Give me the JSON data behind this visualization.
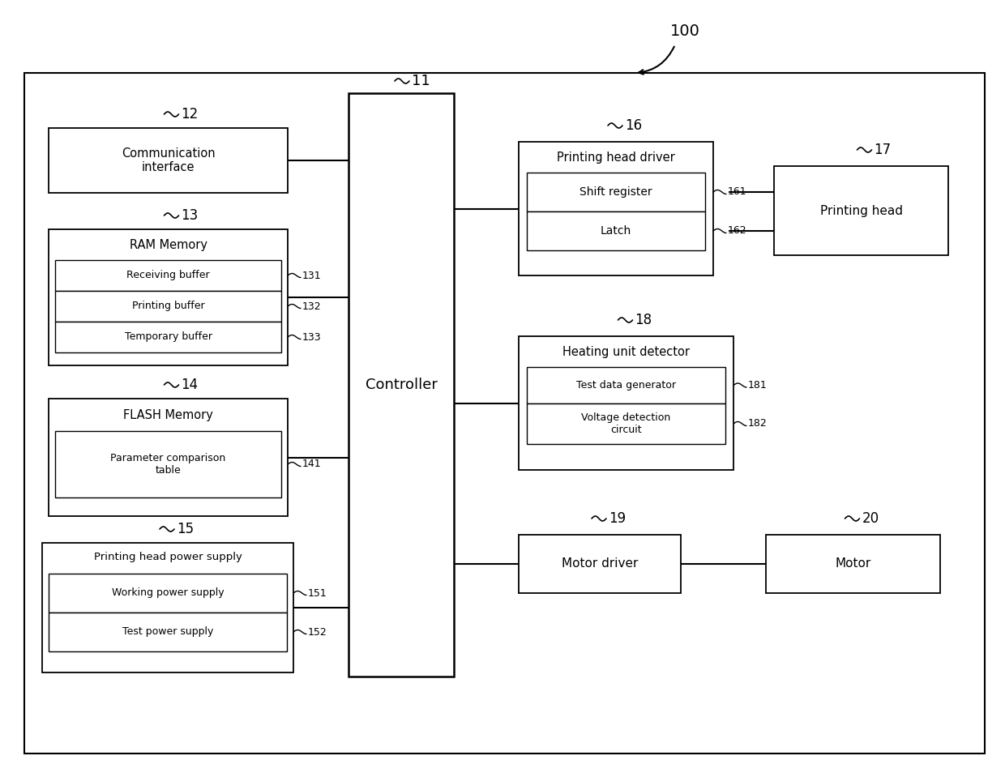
{
  "bg_color": "#ffffff",
  "label_100": "100",
  "label_11": "11",
  "label_12": "12",
  "label_13": "13",
  "label_14": "14",
  "label_15": "15",
  "label_16": "16",
  "label_17": "17",
  "label_18": "18",
  "label_19": "19",
  "label_20": "20",
  "label_131": "131",
  "label_132": "132",
  "label_133": "133",
  "label_141": "141",
  "label_151": "151",
  "label_152": "152",
  "label_161": "161",
  "label_162": "162",
  "label_181": "181",
  "label_182": "182",
  "text_comm": "Communication\ninterface",
  "text_ram": "RAM Memory",
  "text_recv": "Receiving buffer",
  "text_print_buf": "Printing buffer",
  "text_temp": "Temporary buffer",
  "text_flash": "FLASH Memory",
  "text_param": "Parameter comparison\ntable",
  "text_ps": "Printing head power supply",
  "text_wps": "Working power supply",
  "text_tps": "Test power supply",
  "text_ctrl": "Controller",
  "text_phd": "Printing head driver",
  "text_sr": "Shift register",
  "text_latch": "Latch",
  "text_ph": "Printing head",
  "text_hud": "Heating unit detector",
  "text_tdg": "Test data generator",
  "text_vdc": "Voltage detection\ncircuit",
  "text_md": "Motor driver",
  "text_motor": "Motor"
}
